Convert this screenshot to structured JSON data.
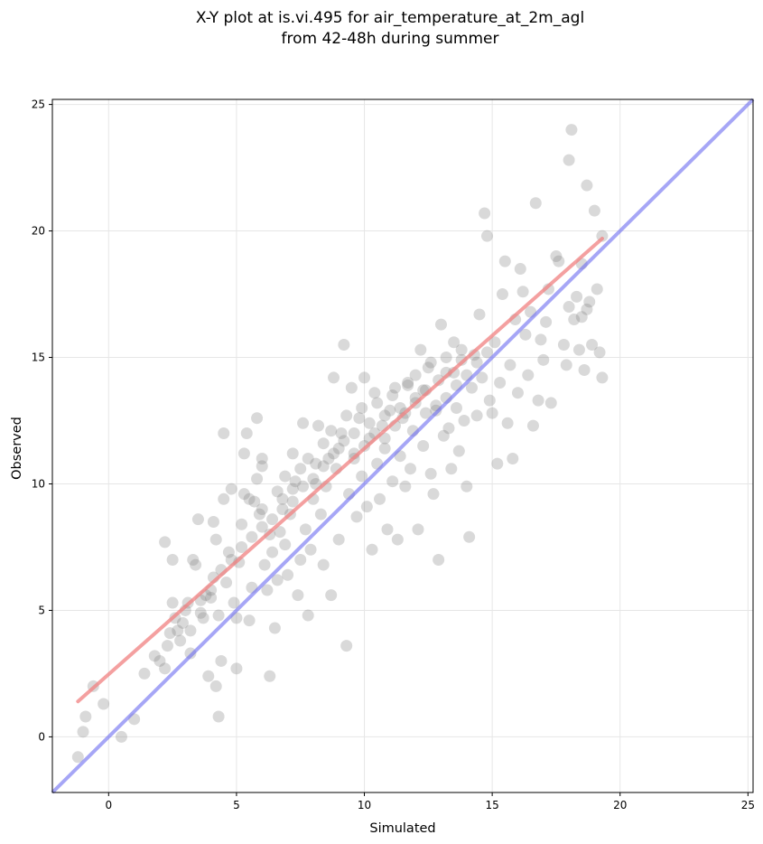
{
  "chart_data": {
    "type": "scatter",
    "title_lines": [
      "X-Y plot at is.vi.495 for air_temperature_at_2m_agl",
      "from 42-48h during summer"
    ],
    "xlabel": "Simulated",
    "ylabel": "Observed",
    "xlim": [
      -2.2,
      25.2
    ],
    "ylim": [
      -2.2,
      25.2
    ],
    "xticks": [
      0,
      5,
      10,
      15,
      20,
      25
    ],
    "yticks": [
      0,
      5,
      10,
      15,
      20,
      25
    ],
    "grid": true,
    "colors": {
      "points": "#808080",
      "fit_line": "#f08080",
      "identity_line": "#6b6bf0"
    },
    "fit_line": {
      "x": [
        -1.2,
        19.3
      ],
      "y": [
        1.4,
        19.7
      ]
    },
    "identity_line": {
      "x": [
        -2.2,
        25.2
      ],
      "y": [
        -2.2,
        25.2
      ]
    },
    "points": [
      [
        -1.2,
        -0.8
      ],
      [
        -1.0,
        0.2
      ],
      [
        -0.9,
        0.8
      ],
      [
        -0.6,
        2.0
      ],
      [
        -0.2,
        1.3
      ],
      [
        0.5,
        0.0
      ],
      [
        1.0,
        0.7
      ],
      [
        1.4,
        2.5
      ],
      [
        1.8,
        3.2
      ],
      [
        2.0,
        3.0
      ],
      [
        2.2,
        2.7
      ],
      [
        2.2,
        7.7
      ],
      [
        2.3,
        3.6
      ],
      [
        2.4,
        4.1
      ],
      [
        2.5,
        7.0
      ],
      [
        2.5,
        5.3
      ],
      [
        2.6,
        4.7
      ],
      [
        2.7,
        4.2
      ],
      [
        2.8,
        3.8
      ],
      [
        2.9,
        4.5
      ],
      [
        3.0,
        5.0
      ],
      [
        3.1,
        5.3
      ],
      [
        3.2,
        3.3
      ],
      [
        3.3,
        7.0
      ],
      [
        3.4,
        6.8
      ],
      [
        3.5,
        8.6
      ],
      [
        3.6,
        5.4
      ],
      [
        3.7,
        4.7
      ],
      [
        3.8,
        5.6
      ],
      [
        3.9,
        2.4
      ],
      [
        4.0,
        5.5
      ],
      [
        4.1,
        8.5
      ],
      [
        4.1,
        6.3
      ],
      [
        4.2,
        7.8
      ],
      [
        4.2,
        2.0
      ],
      [
        4.3,
        0.8
      ],
      [
        4.3,
        4.8
      ],
      [
        4.4,
        3.0
      ],
      [
        4.5,
        9.4
      ],
      [
        4.5,
        12.0
      ],
      [
        4.6,
        6.1
      ],
      [
        4.7,
        7.3
      ],
      [
        4.8,
        9.8
      ],
      [
        4.9,
        5.3
      ],
      [
        5.0,
        2.7
      ],
      [
        5.0,
        4.7
      ],
      [
        5.1,
        6.9
      ],
      [
        5.2,
        8.4
      ],
      [
        5.3,
        9.6
      ],
      [
        5.3,
        11.2
      ],
      [
        5.4,
        12.0
      ],
      [
        5.5,
        4.6
      ],
      [
        5.6,
        5.9
      ],
      [
        5.7,
        9.3
      ],
      [
        5.8,
        12.6
      ],
      [
        5.9,
        8.8
      ],
      [
        6.0,
        10.7
      ],
      [
        6.0,
        11.0
      ],
      [
        6.1,
        6.8
      ],
      [
        6.2,
        5.8
      ],
      [
        6.3,
        2.4
      ],
      [
        6.4,
        7.3
      ],
      [
        6.5,
        4.3
      ],
      [
        6.6,
        6.2
      ],
      [
        6.7,
        8.1
      ],
      [
        6.8,
        9.4
      ],
      [
        6.9,
        7.6
      ],
      [
        7.0,
        6.4
      ],
      [
        7.1,
        8.8
      ],
      [
        7.2,
        11.2
      ],
      [
        7.3,
        10.1
      ],
      [
        7.4,
        5.6
      ],
      [
        7.5,
        7.0
      ],
      [
        7.6,
        12.4
      ],
      [
        7.7,
        8.2
      ],
      [
        7.8,
        4.8
      ],
      [
        7.9,
        7.4
      ],
      [
        8.0,
        9.4
      ],
      [
        8.1,
        10.8
      ],
      [
        8.2,
        12.3
      ],
      [
        8.3,
        8.8
      ],
      [
        8.4,
        6.8
      ],
      [
        8.5,
        9.9
      ],
      [
        8.6,
        11.0
      ],
      [
        8.7,
        5.6
      ],
      [
        8.8,
        14.2
      ],
      [
        8.9,
        10.6
      ],
      [
        9.0,
        7.8
      ],
      [
        9.1,
        12.0
      ],
      [
        9.2,
        15.5
      ],
      [
        9.3,
        3.6
      ],
      [
        9.4,
        9.6
      ],
      [
        9.5,
        13.8
      ],
      [
        9.6,
        11.2
      ],
      [
        9.7,
        8.7
      ],
      [
        9.8,
        12.6
      ],
      [
        9.9,
        10.3
      ],
      [
        10.0,
        14.2
      ],
      [
        10.1,
        9.1
      ],
      [
        10.2,
        11.8
      ],
      [
        10.3,
        7.4
      ],
      [
        10.4,
        13.6
      ],
      [
        10.5,
        10.8
      ],
      [
        10.6,
        9.4
      ],
      [
        10.7,
        12.3
      ],
      [
        10.8,
        11.4
      ],
      [
        10.9,
        8.2
      ],
      [
        11.0,
        12.9
      ],
      [
        11.1,
        10.1
      ],
      [
        11.2,
        13.8
      ],
      [
        11.3,
        7.8
      ],
      [
        11.4,
        11.1
      ],
      [
        11.5,
        12.6
      ],
      [
        11.6,
        9.9
      ],
      [
        11.7,
        14.0
      ],
      [
        11.8,
        10.6
      ],
      [
        11.9,
        12.1
      ],
      [
        12.0,
        13.4
      ],
      [
        12.1,
        8.2
      ],
      [
        12.2,
        15.3
      ],
      [
        12.3,
        11.5
      ],
      [
        12.4,
        12.8
      ],
      [
        12.5,
        14.6
      ],
      [
        12.6,
        10.4
      ],
      [
        12.7,
        9.6
      ],
      [
        12.8,
        13.1
      ],
      [
        12.9,
        7.0
      ],
      [
        13.0,
        16.3
      ],
      [
        13.1,
        11.9
      ],
      [
        13.2,
        14.4
      ],
      [
        13.3,
        12.2
      ],
      [
        13.4,
        10.6
      ],
      [
        13.5,
        15.6
      ],
      [
        13.6,
        13.0
      ],
      [
        13.7,
        11.3
      ],
      [
        13.8,
        14.9
      ],
      [
        13.9,
        12.5
      ],
      [
        14.0,
        9.9
      ],
      [
        14.1,
        7.9
      ],
      [
        14.2,
        13.8
      ],
      [
        14.3,
        15.1
      ],
      [
        14.4,
        12.7
      ],
      [
        14.5,
        16.7
      ],
      [
        14.6,
        14.2
      ],
      [
        14.7,
        20.7
      ],
      [
        14.8,
        19.8
      ],
      [
        14.9,
        13.3
      ],
      [
        15.0,
        12.8
      ],
      [
        15.1,
        15.6
      ],
      [
        15.2,
        10.8
      ],
      [
        15.3,
        14.0
      ],
      [
        15.4,
        17.5
      ],
      [
        15.5,
        18.8
      ],
      [
        15.6,
        12.4
      ],
      [
        15.7,
        14.7
      ],
      [
        15.8,
        11.0
      ],
      [
        15.9,
        16.5
      ],
      [
        16.0,
        13.6
      ],
      [
        16.1,
        18.5
      ],
      [
        16.2,
        17.6
      ],
      [
        16.3,
        15.9
      ],
      [
        16.4,
        14.3
      ],
      [
        16.5,
        16.8
      ],
      [
        16.6,
        12.3
      ],
      [
        16.7,
        21.1
      ],
      [
        16.8,
        13.3
      ],
      [
        16.9,
        15.7
      ],
      [
        17.0,
        14.9
      ],
      [
        17.1,
        16.4
      ],
      [
        17.2,
        17.7
      ],
      [
        17.3,
        13.2
      ],
      [
        17.5,
        19.0
      ],
      [
        17.6,
        18.8
      ],
      [
        17.8,
        15.5
      ],
      [
        17.9,
        14.7
      ],
      [
        18.0,
        17.0
      ],
      [
        18.1,
        24.0
      ],
      [
        18.2,
        16.5
      ],
      [
        18.3,
        17.4
      ],
      [
        18.4,
        15.3
      ],
      [
        18.5,
        18.7
      ],
      [
        18.6,
        14.5
      ],
      [
        18.7,
        16.9
      ],
      [
        18.8,
        17.2
      ],
      [
        18.9,
        15.5
      ],
      [
        19.0,
        20.8
      ],
      [
        19.1,
        17.7
      ],
      [
        19.2,
        15.2
      ],
      [
        19.3,
        14.2
      ],
      [
        18.0,
        22.8
      ],
      [
        18.7,
        21.8
      ],
      [
        19.3,
        19.8
      ],
      [
        18.5,
        16.6
      ],
      [
        5.5,
        9.4
      ],
      [
        5.8,
        10.2
      ],
      [
        6.0,
        9.0
      ],
      [
        6.3,
        8.0
      ],
      [
        6.6,
        9.7
      ],
      [
        6.9,
        10.3
      ],
      [
        7.2,
        9.8
      ],
      [
        7.5,
        10.6
      ],
      [
        7.8,
        11.0
      ],
      [
        8.1,
        10.0
      ],
      [
        8.4,
        11.6
      ],
      [
        8.7,
        12.1
      ],
      [
        9.0,
        11.4
      ],
      [
        9.3,
        12.7
      ],
      [
        9.6,
        12.0
      ],
      [
        9.9,
        13.0
      ],
      [
        10.2,
        12.4
      ],
      [
        10.5,
        13.2
      ],
      [
        10.8,
        12.7
      ],
      [
        11.1,
        13.5
      ],
      [
        11.4,
        13.0
      ],
      [
        11.7,
        13.9
      ],
      [
        12.0,
        14.3
      ],
      [
        12.3,
        13.7
      ],
      [
        12.6,
        14.8
      ],
      [
        12.9,
        14.1
      ],
      [
        13.2,
        15.0
      ],
      [
        13.5,
        14.4
      ],
      [
        13.8,
        15.3
      ],
      [
        3.2,
        4.2
      ],
      [
        3.6,
        4.9
      ],
      [
        4.0,
        5.8
      ],
      [
        4.4,
        6.6
      ],
      [
        4.8,
        7.0
      ],
      [
        5.2,
        7.5
      ],
      [
        5.6,
        7.9
      ],
      [
        6.0,
        8.3
      ],
      [
        6.4,
        8.6
      ],
      [
        6.8,
        9.0
      ],
      [
        7.2,
        9.3
      ],
      [
        7.6,
        9.9
      ],
      [
        8.0,
        10.2
      ],
      [
        8.4,
        10.7
      ],
      [
        8.8,
        11.2
      ],
      [
        9.2,
        11.7
      ],
      [
        9.6,
        11.0
      ],
      [
        10.0,
        11.5
      ],
      [
        10.4,
        12.0
      ],
      [
        10.8,
        11.8
      ],
      [
        11.2,
        12.3
      ],
      [
        11.6,
        12.8
      ],
      [
        12.0,
        13.2
      ],
      [
        12.4,
        13.7
      ],
      [
        12.8,
        12.9
      ],
      [
        13.2,
        13.4
      ],
      [
        13.6,
        13.9
      ],
      [
        14.0,
        14.3
      ],
      [
        14.4,
        14.8
      ],
      [
        14.8,
        15.2
      ]
    ]
  }
}
